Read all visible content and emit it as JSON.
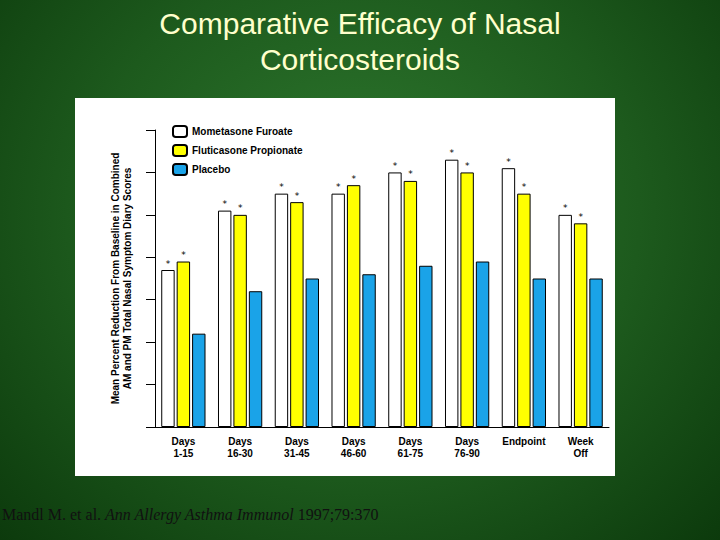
{
  "chart_data": {
    "type": "bar",
    "title": "Comparative Efficacy of Nasal Corticosteroids",
    "y_label": "Mean Percent Reduction From Baseline in Combined AM and PM Total Nasal Symptom Diary Scores",
    "categories": [
      "Days 1-15",
      "Days 16-30",
      "Days 31-45",
      "Days 46-60",
      "Days 61-75",
      "Days 76-90",
      "Endpoint",
      "Week Off"
    ],
    "series": [
      {
        "name": "Mometasone Furoate",
        "color": "#ffffff",
        "values": [
          37,
          51,
          55,
          55,
          60,
          63,
          61,
          50
        ],
        "annotations": [
          "*",
          "*",
          "*",
          "*",
          "*",
          "*",
          "*",
          "*"
        ]
      },
      {
        "name": "Fluticasone Propionate",
        "color": "#ffff00",
        "values": [
          39,
          50,
          53,
          57,
          58,
          60,
          55,
          48
        ],
        "annotations": [
          "*",
          "*",
          "*",
          "*",
          "*",
          "*",
          "*",
          "*"
        ]
      },
      {
        "name": "Placebo",
        "color": "#1aa3e8",
        "values": [
          22,
          32,
          35,
          36,
          38,
          39,
          35,
          35
        ]
      }
    ],
    "ylim": [
      0,
      70
    ],
    "yticks": [
      0,
      10,
      20,
      30,
      40,
      50,
      60,
      70
    ],
    "grid": false,
    "legend": "top-left",
    "tick_labels": "x",
    "source": {
      "authors": "Mandl M. et al.",
      "journal": "Ann Allergy Asthma Immunol",
      "citation": "1997;79:370"
    }
  }
}
